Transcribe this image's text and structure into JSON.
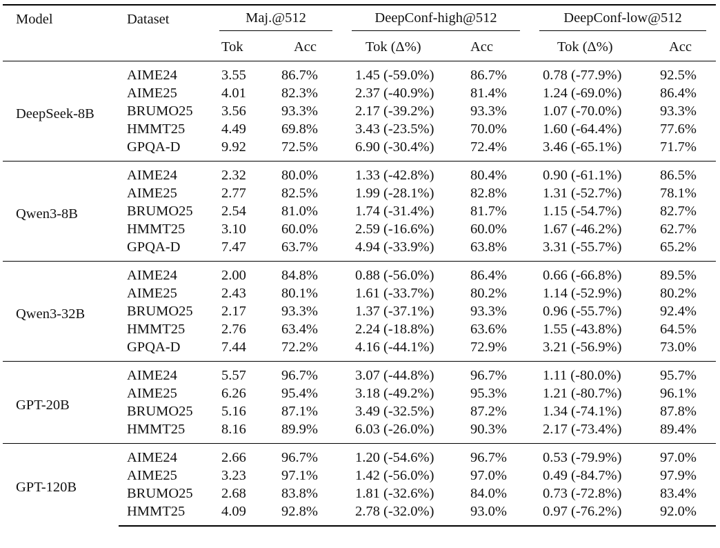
{
  "headers": {
    "model": "Model",
    "dataset": "Dataset",
    "groups": [
      "Maj.@512",
      "DeepConf-high@512",
      "DeepConf-low@512"
    ],
    "sub": {
      "maj_tok": "Tok",
      "maj_acc": "Acc",
      "high_tok": "Tok (Δ%)",
      "high_acc": "Acc",
      "low_tok": "Tok (Δ%)",
      "low_acc": "Acc"
    }
  },
  "groups": [
    {
      "model": "DeepSeek-8B",
      "rows": [
        {
          "dataset": "AIME24",
          "maj_tok": "3.55",
          "maj_acc": "86.7%",
          "high_tok": "1.45 (-59.0%)",
          "high_acc": "86.7%",
          "low_tok": "0.78 (-77.9%)",
          "low_acc": "92.5%"
        },
        {
          "dataset": "AIME25",
          "maj_tok": "4.01",
          "maj_acc": "82.3%",
          "high_tok": "2.37 (-40.9%)",
          "high_acc": "81.4%",
          "low_tok": "1.24 (-69.0%)",
          "low_acc": "86.4%"
        },
        {
          "dataset": "BRUMO25",
          "maj_tok": "3.56",
          "maj_acc": "93.3%",
          "high_tok": "2.17 (-39.2%)",
          "high_acc": "93.3%",
          "low_tok": "1.07 (-70.0%)",
          "low_acc": "93.3%"
        },
        {
          "dataset": "HMMT25",
          "maj_tok": "4.49",
          "maj_acc": "69.8%",
          "high_tok": "3.43 (-23.5%)",
          "high_acc": "70.0%",
          "low_tok": "1.60 (-64.4%)",
          "low_acc": "77.6%"
        },
        {
          "dataset": "GPQA-D",
          "maj_tok": "9.92",
          "maj_acc": "72.5%",
          "high_tok": "6.90 (-30.4%)",
          "high_acc": "72.4%",
          "low_tok": "3.46 (-65.1%)",
          "low_acc": "71.7%"
        }
      ]
    },
    {
      "model": "Qwen3-8B",
      "rows": [
        {
          "dataset": "AIME24",
          "maj_tok": "2.32",
          "maj_acc": "80.0%",
          "high_tok": "1.33 (-42.8%)",
          "high_acc": "80.4%",
          "low_tok": "0.90 (-61.1%)",
          "low_acc": "86.5%"
        },
        {
          "dataset": "AIME25",
          "maj_tok": "2.77",
          "maj_acc": "82.5%",
          "high_tok": "1.99 (-28.1%)",
          "high_acc": "82.8%",
          "low_tok": "1.31 (-52.7%)",
          "low_acc": "78.1%"
        },
        {
          "dataset": "BRUMO25",
          "maj_tok": "2.54",
          "maj_acc": "81.0%",
          "high_tok": "1.74 (-31.4%)",
          "high_acc": "81.7%",
          "low_tok": "1.15 (-54.7%)",
          "low_acc": "82.7%"
        },
        {
          "dataset": "HMMT25",
          "maj_tok": "3.10",
          "maj_acc": "60.0%",
          "high_tok": "2.59 (-16.6%)",
          "high_acc": "60.0%",
          "low_tok": "1.67 (-46.2%)",
          "low_acc": "62.7%"
        },
        {
          "dataset": "GPQA-D",
          "maj_tok": "7.47",
          "maj_acc": "63.7%",
          "high_tok": "4.94 (-33.9%)",
          "high_acc": "63.8%",
          "low_tok": "3.31 (-55.7%)",
          "low_acc": "65.2%"
        }
      ]
    },
    {
      "model": "Qwen3-32B",
      "rows": [
        {
          "dataset": "AIME24",
          "maj_tok": "2.00",
          "maj_acc": "84.8%",
          "high_tok": "0.88 (-56.0%)",
          "high_acc": "86.4%",
          "low_tok": "0.66 (-66.8%)",
          "low_acc": "89.5%"
        },
        {
          "dataset": "AIME25",
          "maj_tok": "2.43",
          "maj_acc": "80.1%",
          "high_tok": "1.61 (-33.7%)",
          "high_acc": "80.2%",
          "low_tok": "1.14 (-52.9%)",
          "low_acc": "80.2%"
        },
        {
          "dataset": "BRUMO25",
          "maj_tok": "2.17",
          "maj_acc": "93.3%",
          "high_tok": "1.37 (-37.1%)",
          "high_acc": "93.3%",
          "low_tok": "0.96 (-55.7%)",
          "low_acc": "92.4%"
        },
        {
          "dataset": "HMMT25",
          "maj_tok": "2.76",
          "maj_acc": "63.4%",
          "high_tok": "2.24 (-18.8%)",
          "high_acc": "63.6%",
          "low_tok": "1.55 (-43.8%)",
          "low_acc": "64.5%"
        },
        {
          "dataset": "GPQA-D",
          "maj_tok": "7.44",
          "maj_acc": "72.2%",
          "high_tok": "4.16 (-44.1%)",
          "high_acc": "72.9%",
          "low_tok": "3.21 (-56.9%)",
          "low_acc": "73.0%"
        }
      ]
    },
    {
      "model": "GPT-20B",
      "rows": [
        {
          "dataset": "AIME24",
          "maj_tok": "5.57",
          "maj_acc": "96.7%",
          "high_tok": "3.07 (-44.8%)",
          "high_acc": "96.7%",
          "low_tok": "1.11 (-80.0%)",
          "low_acc": "95.7%"
        },
        {
          "dataset": "AIME25",
          "maj_tok": "6.26",
          "maj_acc": "95.4%",
          "high_tok": "3.18 (-49.2%)",
          "high_acc": "95.3%",
          "low_tok": "1.21 (-80.7%)",
          "low_acc": "96.1%"
        },
        {
          "dataset": "BRUMO25",
          "maj_tok": "5.16",
          "maj_acc": "87.1%",
          "high_tok": "3.49 (-32.5%)",
          "high_acc": "87.2%",
          "low_tok": "1.34 (-74.1%)",
          "low_acc": "87.8%"
        },
        {
          "dataset": "HMMT25",
          "maj_tok": "8.16",
          "maj_acc": "89.9%",
          "high_tok": "6.03 (-26.0%)",
          "high_acc": "90.3%",
          "low_tok": "2.17 (-73.4%)",
          "low_acc": "89.4%"
        }
      ]
    },
    {
      "model": "GPT-120B",
      "rows": [
        {
          "dataset": "AIME24",
          "maj_tok": "2.66",
          "maj_acc": "96.7%",
          "high_tok": "1.20 (-54.6%)",
          "high_acc": "96.7%",
          "low_tok": "0.53 (-79.9%)",
          "low_acc": "97.0%"
        },
        {
          "dataset": "AIME25",
          "maj_tok": "3.23",
          "maj_acc": "97.1%",
          "high_tok": "1.42 (-56.0%)",
          "high_acc": "97.0%",
          "low_tok": "0.49 (-84.7%)",
          "low_acc": "97.9%"
        },
        {
          "dataset": "BRUMO25",
          "maj_tok": "2.68",
          "maj_acc": "83.8%",
          "high_tok": "1.81 (-32.6%)",
          "high_acc": "84.0%",
          "low_tok": "0.73 (-72.8%)",
          "low_acc": "83.4%"
        },
        {
          "dataset": "HMMT25",
          "maj_tok": "4.09",
          "maj_acc": "92.8%",
          "high_tok": "2.78 (-32.0%)",
          "high_acc": "93.0%",
          "low_tok": "0.97 (-76.2%)",
          "low_acc": "92.0%"
        }
      ]
    }
  ]
}
